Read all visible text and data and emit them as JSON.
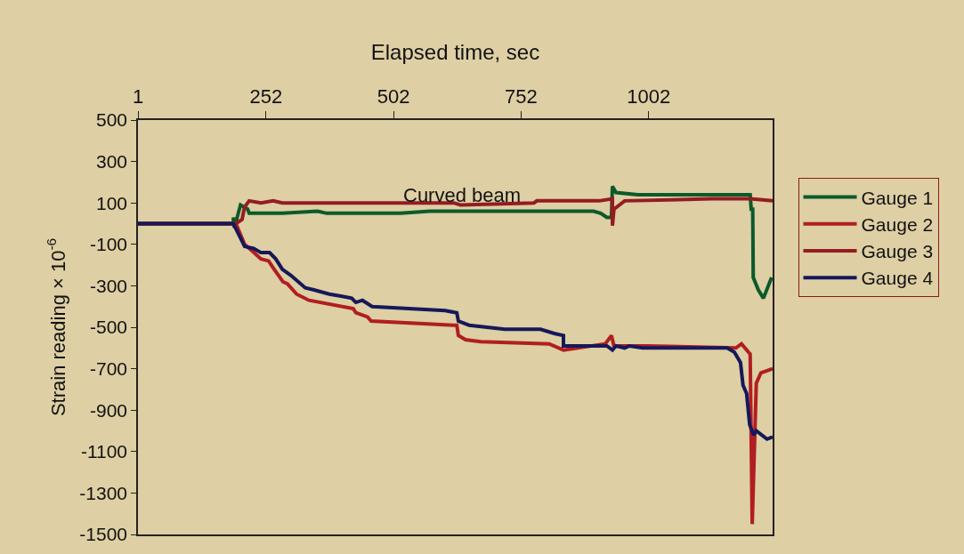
{
  "chart_data": {
    "type": "line",
    "xlabel": "Elapsed time, sec",
    "ylabel": "Strain reading × 10$^{-6}$",
    "annotations": [
      "Curved beam"
    ],
    "xlim": [
      1,
      1245
    ],
    "xticks": [
      1,
      252,
      502,
      752,
      1002
    ],
    "ylim": [
      -1500,
      500
    ],
    "yticks": [
      -1500,
      -1300,
      -1100,
      -900,
      -700,
      -500,
      -300,
      -100,
      100,
      300,
      500
    ],
    "grid": false,
    "legend": "right",
    "marker": "none",
    "line_style": "solid",
    "series": [
      {
        "name": "Gauge 1",
        "color": "#0b5a2a",
        "x": [
          1,
          188,
          188,
          190,
          202,
          216,
          219,
          249,
          284,
          353,
          371,
          516,
          573,
          620,
          894,
          908,
          920,
          929,
          931,
          938,
          981,
          1201,
          1203,
          1206,
          1207,
          1217,
          1227,
          1243
        ],
        "values": [
          0,
          0,
          30,
          -20,
          90,
          70,
          50,
          50,
          50,
          60,
          50,
          50,
          60,
          60,
          60,
          50,
          30,
          30,
          180,
          150,
          140,
          140,
          70,
          70,
          -260,
          -320,
          -360,
          -260
        ]
      },
      {
        "name": "Gauge 2",
        "color": "#b01e23",
        "x": [
          1,
          193,
          210,
          224,
          242,
          257,
          268,
          285,
          294,
          312,
          336,
          423,
          428,
          451,
          458,
          620,
          626,
          629,
          643,
          673,
          807,
          835,
          917,
          929,
          934,
          974,
          999,
          1173,
          1184,
          1201,
          1205,
          1213,
          1222,
          1245
        ],
        "values": [
          0,
          0,
          -100,
          -130,
          -170,
          -180,
          -220,
          -280,
          -290,
          -340,
          -370,
          -410,
          -430,
          -450,
          -470,
          -490,
          -490,
          -540,
          -560,
          -570,
          -580,
          -610,
          -580,
          -540,
          -590,
          -590,
          -590,
          -600,
          -580,
          -630,
          -1450,
          -770,
          -720,
          -700
        ]
      },
      {
        "name": "Gauge 3",
        "color": "#941c22",
        "x": [
          1,
          193,
          205,
          210,
          219,
          242,
          266,
          284,
          416,
          620,
          633,
          777,
          783,
          905,
          931,
          931,
          934,
          955,
          1126,
          1201,
          1245
        ],
        "values": [
          0,
          0,
          20,
          80,
          110,
          100,
          110,
          100,
          100,
          100,
          90,
          100,
          110,
          110,
          120,
          -10,
          70,
          110,
          120,
          120,
          110
        ]
      },
      {
        "name": "Gauge 4",
        "color": "#16185a",
        "x": [
          1,
          188,
          210,
          228,
          242,
          259,
          271,
          284,
          301,
          329,
          346,
          376,
          399,
          420,
          428,
          441,
          460,
          603,
          626,
          629,
          650,
          720,
          790,
          817,
          835,
          835,
          920,
          931,
          938,
          955,
          964,
          990,
          1156,
          1170,
          1182,
          1187,
          1194,
          1200,
          1208,
          1213,
          1234,
          1245
        ],
        "values": [
          0,
          0,
          -110,
          -120,
          -140,
          -140,
          -170,
          -220,
          -250,
          -310,
          -320,
          -340,
          -350,
          -360,
          -380,
          -370,
          -400,
          -420,
          -430,
          -470,
          -490,
          -510,
          -510,
          -530,
          -540,
          -590,
          -590,
          -610,
          -590,
          -600,
          -590,
          -600,
          -600,
          -620,
          -670,
          -780,
          -820,
          -970,
          -1020,
          -1000,
          -1040,
          -1030
        ]
      }
    ]
  }
}
